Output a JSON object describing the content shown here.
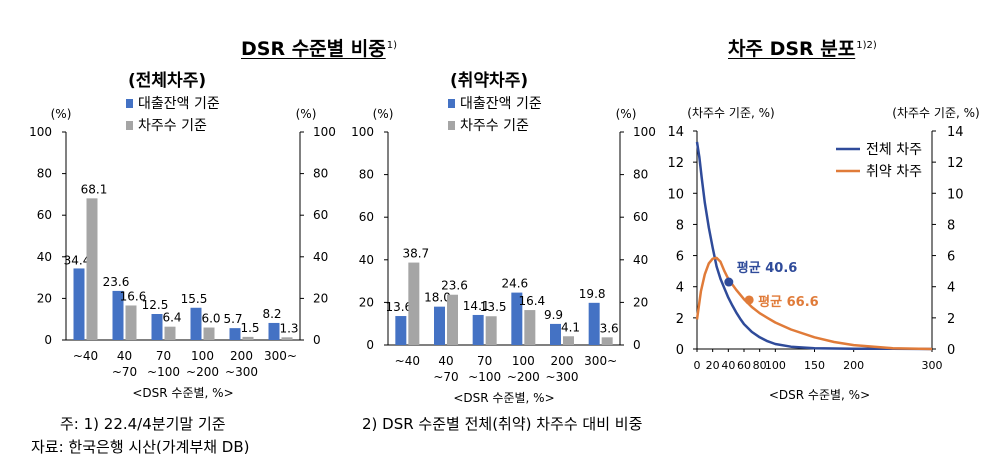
{
  "panels": {
    "left": {
      "title": "DSR 수준별 비중",
      "title_sup": "1)"
    },
    "right": {
      "title": "차주 DSR 분포",
      "title_sup": "1)2)"
    }
  },
  "footnotes": {
    "note1": "주: 1) 22.4/4분기말 기준",
    "note2": "2) DSR 수준별 전체(취약) 차주수 대비 비중",
    "source": "자료: 한국은행 시산(가계부채 DB)"
  },
  "colors": {
    "loan_balance": "#4472C4",
    "borrower_count": "#A5A5A5",
    "all_borrowers": "#2F4B9A",
    "vulnerable_borrowers": "#E07B39"
  },
  "chart_data": [
    {
      "type": "bar",
      "title": "(전체차주)",
      "categories": [
        "~40",
        "40\n~70",
        "70\n~100",
        "100\n~200",
        "200\n~300",
        "300~"
      ],
      "series": [
        {
          "name": "대출잔액 기준",
          "values": [
            34.4,
            23.6,
            12.5,
            15.5,
            5.7,
            8.2
          ]
        },
        {
          "name": "차주수 기준",
          "values": [
            68.1,
            16.6,
            6.4,
            6.0,
            1.5,
            1.3
          ]
        }
      ],
      "xlabel": "<DSR 수준별, %>",
      "ylabel": "(%)",
      "ylabel_right": "(%)",
      "ylim": [
        0,
        100
      ],
      "yticks": [
        0,
        20,
        40,
        60,
        80,
        100
      ],
      "legend": "top-left"
    },
    {
      "type": "bar",
      "title": "(취약차주)",
      "categories": [
        "~40",
        "40\n~70",
        "70\n~100",
        "100\n~200",
        "200\n~300",
        "300~"
      ],
      "series": [
        {
          "name": "대출잔액 기준",
          "values": [
            13.6,
            18.0,
            14.1,
            24.6,
            9.9,
            19.8
          ]
        },
        {
          "name": "차주수 기준",
          "values": [
            38.7,
            23.6,
            13.5,
            16.4,
            4.1,
            3.6
          ]
        }
      ],
      "xlabel": "<DSR 수준별, %>",
      "ylabel": "(%)",
      "ylabel_right": "(%)",
      "ylim": [
        0,
        100
      ],
      "yticks": [
        0,
        20,
        40,
        60,
        80,
        100
      ],
      "legend": "top-left"
    },
    {
      "type": "line",
      "xlabel": "<DSR 수준별, %>",
      "ylabel": "(차주수 기준, %)",
      "ylabel_right": "(차주수 기준, %)",
      "xlim": [
        0,
        300
      ],
      "ylim": [
        0,
        14
      ],
      "xtick_labels": [
        "0",
        "20",
        "40",
        "60",
        "80",
        "100",
        "150",
        "200",
        "300"
      ],
      "xtick_values": [
        0,
        20,
        40,
        60,
        80,
        100,
        150,
        200,
        300
      ],
      "yticks": [
        0,
        2,
        4,
        6,
        8,
        10,
        12,
        14
      ],
      "legend": "top-right",
      "series": [
        {
          "name": "전체 차주",
          "x": [
            0,
            3,
            6,
            10,
            15,
            20,
            25,
            30,
            35,
            40,
            45,
            50,
            55,
            60,
            70,
            80,
            90,
            100,
            120,
            150,
            200,
            250,
            300
          ],
          "y": [
            13.3,
            12.3,
            11.0,
            9.4,
            7.8,
            6.5,
            5.3,
            4.5,
            3.9,
            3.3,
            2.8,
            2.35,
            1.95,
            1.6,
            1.1,
            0.75,
            0.5,
            0.32,
            0.15,
            0.05,
            0.02,
            0.01,
            0.0
          ]
        },
        {
          "name": "취약 차주",
          "x": [
            0,
            5,
            10,
            15,
            20,
            25,
            30,
            35,
            40,
            50,
            60,
            70,
            80,
            90,
            100,
            120,
            150,
            175,
            200,
            250,
            300
          ],
          "y": [
            1.9,
            3.7,
            4.8,
            5.5,
            5.8,
            5.85,
            5.6,
            5.0,
            4.5,
            3.8,
            3.2,
            2.7,
            2.3,
            2.0,
            1.7,
            1.25,
            0.75,
            0.45,
            0.25,
            0.05,
            0.0
          ]
        }
      ],
      "annotations": [
        {
          "text": "평균 40.6",
          "x": 40.6,
          "y": 4.3,
          "series": "전체 차주"
        },
        {
          "text": "평균 66.6",
          "x": 66.6,
          "y": 3.15,
          "series": "취약 차주"
        }
      ]
    }
  ]
}
